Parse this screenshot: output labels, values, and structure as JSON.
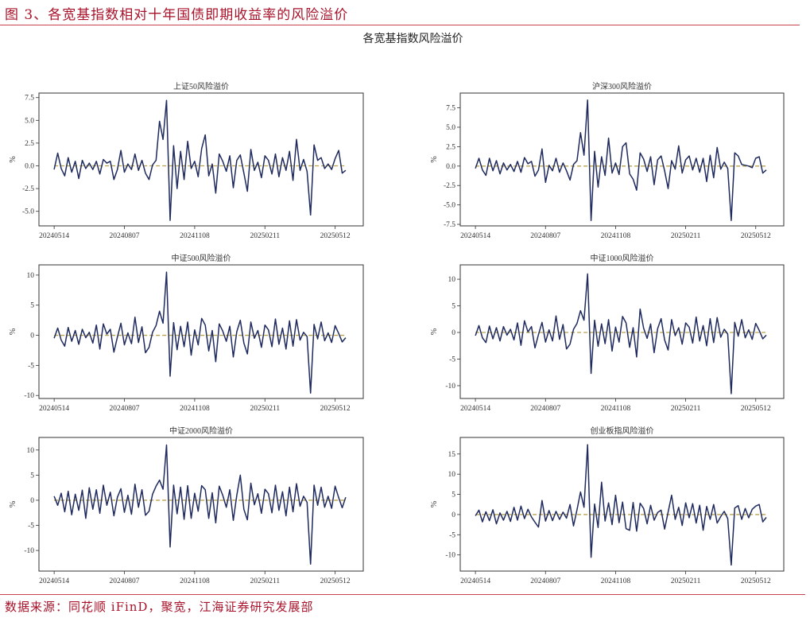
{
  "header": {
    "figure_title": "图 3、各宽基指数相对十年国债即期收益率的风险溢价"
  },
  "subtitle": "各宽基指数风险溢价",
  "footer": {
    "source": "数据来源：同花顺 iFinD，聚宽，江海证券研究发展部"
  },
  "colors": {
    "line": "#1f2a5e",
    "zero_line": "#b9a24e",
    "title_red": "#a8122a"
  },
  "chart_data": [
    {
      "type": "line",
      "title": "上证50风险溢价",
      "ylabel": "%",
      "xtick_labels": [
        "20240514",
        "20240807",
        "20241108",
        "20250211",
        "20250512"
      ],
      "yticks": [
        -5,
        -2.5,
        0,
        2.5,
        5,
        7.5
      ],
      "ytick_labels": [
        "-5.0",
        "-2.5",
        "0.0",
        "2.5",
        "5.0",
        "7.5"
      ],
      "ylim": [
        -6.6,
        8.0
      ],
      "zero_line": "dashed",
      "values": [
        -0.4,
        1.4,
        -0.3,
        -1.1,
        0.9,
        -0.7,
        0.5,
        -1.4,
        0.6,
        -0.3,
        0.3,
        -0.4,
        0.5,
        -0.9,
        0.7,
        0.3,
        0.5,
        -1.5,
        -0.4,
        1.7,
        -0.7,
        0.2,
        -0.4,
        1.3,
        -0.5,
        0.6,
        -0.8,
        -1.5,
        0.1,
        0.6,
        4.9,
        2.9,
        7.2,
        -6.0,
        2.2,
        -2.5,
        1.6,
        -1.5,
        2.7,
        -0.3,
        0.5,
        -1.2,
        1.9,
        3.4,
        -1.1,
        0.2,
        -3.0,
        1.3,
        0.5,
        -0.6,
        1.1,
        -2.4,
        0.6,
        1.2,
        -0.8,
        -2.8,
        1.8,
        -0.5,
        0.4,
        -1.3,
        1.1,
        0.6,
        -0.9,
        1.3,
        -1.2,
        0.9,
        -0.5,
        1.6,
        -1.6,
        2.9,
        -0.5,
        0.7,
        -0.6,
        -5.4,
        2.3,
        0.6,
        0.9,
        -0.3,
        0.2,
        -0.4,
        0.8,
        1.7,
        -0.8,
        -0.5
      ]
    },
    {
      "type": "line",
      "title": "沪深300风险溢价",
      "ylabel": "%",
      "xtick_labels": [
        "20240514",
        "20240807",
        "20241108",
        "20250211",
        "20250512"
      ],
      "yticks": [
        -7.5,
        -5,
        -2.5,
        0,
        2.5,
        5,
        7.5
      ],
      "ytick_labels": [
        "-7.5",
        "-5.0",
        "-2.5",
        "0.0",
        "2.5",
        "5.0",
        "7.5"
      ],
      "ylim": [
        -7.7,
        9.4
      ],
      "zero_line": "dashed",
      "values": [
        -0.3,
        1.0,
        -0.5,
        -1.2,
        1.0,
        -0.6,
        0.7,
        -1.0,
        0.4,
        -0.5,
        0.2,
        -0.7,
        0.6,
        -0.8,
        1.1,
        0.3,
        0.6,
        -1.3,
        -0.5,
        2.2,
        -2.1,
        0.1,
        -0.6,
        1.0,
        -0.8,
        0.4,
        -0.6,
        -1.8,
        0.2,
        0.7,
        4.3,
        1.4,
        8.5,
        -7.0,
        1.9,
        -2.7,
        1.2,
        -1.2,
        3.6,
        -0.9,
        0.4,
        -1.1,
        2.5,
        3.0,
        -1.0,
        -1.7,
        -3.1,
        1.7,
        0.9,
        -0.7,
        1.2,
        -2.4,
        0.8,
        1.3,
        -0.6,
        -2.9,
        0.7,
        -0.4,
        2.6,
        -0.9,
        0.8,
        1.3,
        -0.5,
        1.0,
        -0.8,
        1.0,
        -2.0,
        1.4,
        -1.5,
        2.4,
        -0.4,
        0.5,
        -0.3,
        -7.0,
        1.7,
        1.3,
        0.2,
        0.1,
        0.0,
        -0.2,
        1.0,
        1.2,
        -0.9,
        -0.5
      ]
    },
    {
      "type": "line",
      "title": "中证500风险溢价",
      "ylabel": "%",
      "xtick_labels": [
        "20240514",
        "20240807",
        "20241108",
        "20250211",
        "20250512"
      ],
      "yticks": [
        -10,
        -5,
        0,
        5,
        10
      ],
      "ytick_labels": [
        "-10",
        "-5",
        "0",
        "5",
        "10"
      ],
      "ylim": [
        -10.5,
        11.7
      ],
      "zero_line": "dashed",
      "values": [
        -0.5,
        1.2,
        -0.8,
        -1.8,
        1.3,
        -1.0,
        0.8,
        -1.5,
        1.0,
        -0.4,
        0.5,
        -1.3,
        1.7,
        -2.3,
        1.9,
        0.2,
        1.0,
        -2.8,
        -0.3,
        2.0,
        -1.6,
        0.4,
        -1.4,
        3.0,
        -1.2,
        1.4,
        -2.9,
        -2.0,
        0.5,
        1.6,
        4.0,
        2.0,
        10.5,
        -6.8,
        2.1,
        -2.4,
        1.5,
        -1.9,
        2.2,
        -3.3,
        0.9,
        -1.6,
        2.8,
        1.7,
        -2.6,
        0.8,
        -4.4,
        1.9,
        0.7,
        -1.0,
        1.5,
        -3.6,
        0.6,
        2.5,
        -1.3,
        -3.1,
        2.2,
        -0.5,
        0.8,
        -2.0,
        1.7,
        0.9,
        -1.9,
        2.7,
        -1.5,
        1.2,
        -2.3,
        2.4,
        -1.8,
        2.6,
        -0.8,
        0.5,
        -0.2,
        -9.6,
        1.8,
        -0.6,
        2.2,
        -0.9,
        0.4,
        -1.2,
        1.6,
        0.3,
        -1.1,
        -0.4
      ]
    },
    {
      "type": "line",
      "title": "中证1000风险溢价",
      "ylabel": "%",
      "xtick_labels": [
        "20240514",
        "20240807",
        "20241108",
        "20250211",
        "20250512"
      ],
      "yticks": [
        -10,
        -5,
        0,
        5,
        10
      ],
      "ytick_labels": [
        "-10",
        "-5",
        "0",
        "5",
        "10"
      ],
      "ylim": [
        -12.4,
        12.7
      ],
      "zero_line": "dashed",
      "values": [
        -0.6,
        1.3,
        -1.0,
        -1.9,
        1.2,
        -1.2,
        0.9,
        -1.6,
        1.1,
        -0.5,
        0.6,
        -1.4,
        1.8,
        -2.4,
        2.2,
        0.1,
        1.1,
        -2.9,
        -0.4,
        1.9,
        -1.8,
        0.5,
        -1.6,
        3.1,
        -1.3,
        1.5,
        -3.1,
        -2.2,
        0.6,
        1.7,
        4.1,
        2.3,
        11.0,
        -7.7,
        2.3,
        -2.6,
        1.6,
        -2.1,
        2.4,
        -3.5,
        1.0,
        -1.8,
        3.0,
        1.8,
        -2.8,
        0.9,
        -4.6,
        4.4,
        0.8,
        -1.1,
        1.6,
        -3.8,
        0.7,
        2.6,
        -1.4,
        -3.3,
        2.4,
        -0.6,
        0.9,
        -2.2,
        1.8,
        1.0,
        -2.0,
        2.9,
        -1.6,
        1.3,
        -2.5,
        2.6,
        -1.9,
        2.8,
        -0.9,
        0.6,
        -0.3,
        -11.5,
        1.9,
        -0.7,
        2.4,
        -1.0,
        0.5,
        -1.3,
        1.7,
        0.4,
        -1.2,
        -0.5
      ]
    },
    {
      "type": "line",
      "title": "中证2000风险溢价",
      "ylabel": "%",
      "xtick_labels": [
        "20240514",
        "20240807",
        "20241108",
        "20250211",
        "20250512"
      ],
      "yticks": [
        -10,
        -5,
        0,
        5,
        10
      ],
      "ytick_labels": [
        "-10",
        "-5",
        "0",
        "5",
        "10"
      ],
      "ylim": [
        -14.1,
        12.5
      ],
      "zero_line": "dashed",
      "values": [
        0.8,
        -1.0,
        1.4,
        -2.3,
        1.8,
        -2.9,
        1.2,
        -2.0,
        2.0,
        -3.6,
        2.5,
        -1.8,
        2.1,
        -2.6,
        3.0,
        -1.0,
        1.6,
        -3.1,
        0.6,
        2.3,
        -2.4,
        1.0,
        -2.8,
        3.2,
        -1.4,
        2.1,
        -3.0,
        -2.2,
        1.2,
        2.8,
        4.0,
        2.2,
        11.0,
        -9.3,
        3.0,
        -2.7,
        2.6,
        -3.8,
        2.9,
        -3.6,
        1.4,
        -2.2,
        2.9,
        2.1,
        -3.6,
        1.5,
        -4.5,
        2.8,
        1.0,
        -1.4,
        2.1,
        -4.0,
        1.0,
        5.0,
        -1.8,
        -3.9,
        3.4,
        -0.9,
        1.3,
        -2.6,
        2.2,
        1.3,
        -2.5,
        3.0,
        -2.0,
        1.7,
        -3.1,
        2.6,
        -2.3,
        3.3,
        -1.2,
        0.8,
        -0.4,
        -12.7,
        3.0,
        -1.0,
        2.6,
        -1.4,
        0.8,
        -1.6,
        2.8,
        0.5,
        -1.5,
        0.6
      ]
    },
    {
      "type": "line",
      "title": "创业板指风险溢价",
      "ylabel": "%",
      "xtick_labels": [
        "20240514",
        "20240807",
        "20241108",
        "20250211",
        "20250512"
      ],
      "yticks": [
        -10,
        -5,
        0,
        5,
        10,
        15
      ],
      "ytick_labels": [
        "-10",
        "-5",
        "0",
        "5",
        "10",
        "15"
      ],
      "ylim": [
        -14.0,
        19.1
      ],
      "zero_line": "dashed",
      "values": [
        -0.3,
        1.1,
        -1.8,
        0.7,
        -1.5,
        1.2,
        -2.3,
        0.4,
        -1.4,
        0.8,
        -1.7,
        1.8,
        -1.4,
        2.1,
        -1.0,
        1.3,
        -0.6,
        -1.9,
        -3.1,
        3.5,
        -1.6,
        1.0,
        -1.5,
        0.8,
        -1.2,
        0.6,
        -0.9,
        2.5,
        -2.8,
        1.2,
        5.6,
        1.8,
        17.3,
        -10.6,
        2.6,
        -3.2,
        8.0,
        -1.6,
        2.9,
        -2.5,
        4.8,
        -2.0,
        3.1,
        -3.5,
        -3.9,
        3.0,
        -4.1,
        2.8,
        1.5,
        -2.3,
        2.3,
        -1.4,
        0.5,
        1.1,
        -3.6,
        0.6,
        4.8,
        -1.2,
        1.8,
        -2.7,
        2.9,
        -0.8,
        2.7,
        -2.1,
        2.3,
        -3.9,
        2.0,
        -1.2,
        2.5,
        -2.1,
        -0.5,
        0.8,
        -1.0,
        -12.5,
        1.6,
        2.2,
        -1.2,
        1.5,
        -0.8,
        1.3,
        2.1,
        2.5,
        -1.8,
        -0.7
      ]
    }
  ]
}
